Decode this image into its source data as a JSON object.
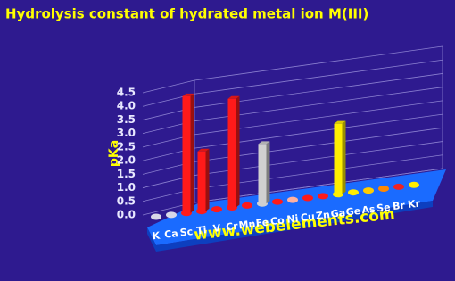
{
  "chart_data": {
    "type": "bar3d",
    "title": "Hydrolysis constant of hydrated metal ion M(III)",
    "y_label": "pKa",
    "watermark": "www.webelements.com",
    "categories": [
      "K",
      "Ca",
      "Sc",
      "Ti",
      "V",
      "Cr",
      "Mn",
      "Fe",
      "Co",
      "Ni",
      "Cu",
      "Zn",
      "Ga",
      "Ge",
      "As",
      "Se",
      "Br",
      "Kr"
    ],
    "values": [
      null,
      null,
      4.3,
      2.2,
      null,
      4.0,
      null,
      2.2,
      null,
      null,
      null,
      null,
      2.6,
      null,
      null,
      null,
      null,
      null
    ],
    "colors": [
      "#d8d8e8",
      "#d8d8e8",
      "#ff1a1a",
      "#ff1a1a",
      "#ff1a1a",
      "#ff1a1a",
      "#ff1a1a",
      "#d0d0d0",
      "#ff1a1a",
      "#ffb0a0",
      "#ff1a1a",
      "#ff1a1a",
      "#ffee00",
      "#ffee00",
      "#ffcc00",
      "#ff8800",
      "#ee2222",
      "#ffee00"
    ],
    "ylim": [
      0,
      4.5
    ],
    "yticks": [
      {
        "value": 0,
        "label": "0.0"
      },
      {
        "value": 0.5,
        "label": "0.5"
      },
      {
        "value": 1,
        "label": "1.0"
      },
      {
        "value": 1.5,
        "label": "1.5"
      },
      {
        "value": 2,
        "label": "2.0"
      },
      {
        "value": 2.5,
        "label": "2.5"
      },
      {
        "value": 3,
        "label": "3.0"
      },
      {
        "value": 3.5,
        "label": "3.5"
      },
      {
        "value": 4,
        "label": "4.0"
      },
      {
        "value": 4.5,
        "label": "4.5"
      }
    ],
    "grid": true
  }
}
